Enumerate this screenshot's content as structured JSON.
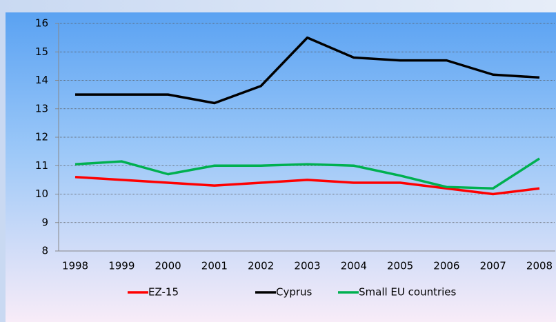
{
  "chart_data": {
    "type": "line",
    "categories": [
      "1998",
      "1999",
      "2000",
      "2001",
      "2002",
      "2003",
      "2004",
      "2005",
      "2006",
      "2007",
      "2008"
    ],
    "series": [
      {
        "name": "EZ-15",
        "color": "#ff0000",
        "values": [
          10.6,
          10.5,
          10.4,
          10.3,
          10.4,
          10.5,
          10.4,
          10.4,
          10.2,
          10.0,
          10.2
        ]
      },
      {
        "name": "Cyprus",
        "color": "#000000",
        "values": [
          13.5,
          13.5,
          13.5,
          13.2,
          13.8,
          15.5,
          14.8,
          14.7,
          14.7,
          14.2,
          14.1
        ]
      },
      {
        "name": "Small EU countries",
        "color": "#00b050",
        "values": [
          11.05,
          11.15,
          10.7,
          11.0,
          11.0,
          11.05,
          11.0,
          10.65,
          10.25,
          10.2,
          11.25
        ]
      }
    ],
    "ylim": [
      8,
      16
    ],
    "yticks": [
      8,
      9,
      10,
      11,
      12,
      13,
      14,
      15,
      16
    ],
    "grid": true,
    "legend": "bottom"
  }
}
